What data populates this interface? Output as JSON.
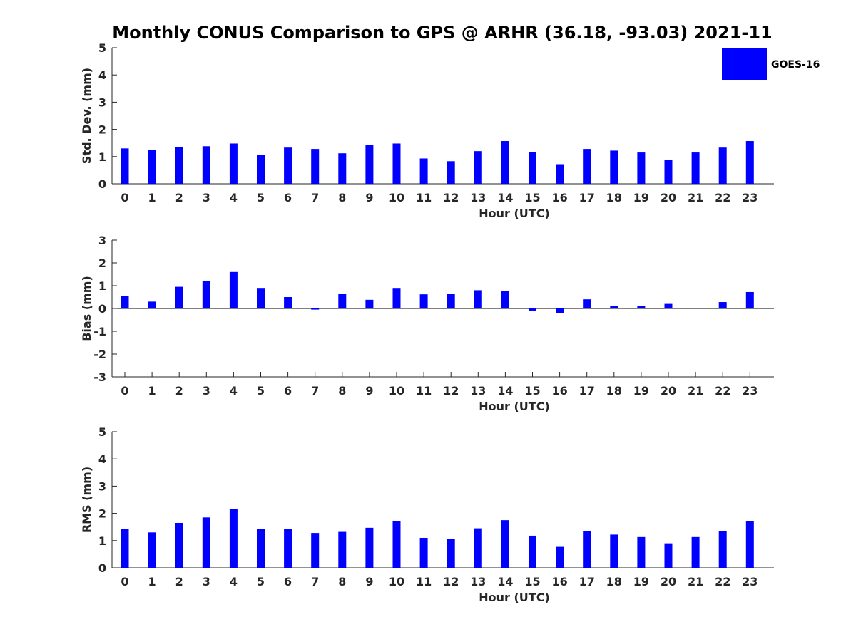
{
  "title": "Monthly CONUS Comparison to GPS @ ARHR (36.18, -93.03) 2021-11",
  "legend": {
    "label": "GOES-16",
    "color": "#0000ff"
  },
  "chart_data": [
    {
      "type": "bar",
      "name": "std_dev",
      "xlabel": "Hour (UTC)",
      "ylabel": "Std. Dev. (mm)",
      "ylim": [
        0,
        5
      ],
      "yticks": [
        0,
        1,
        2,
        3,
        4,
        5
      ],
      "categories": [
        "0",
        "1",
        "2",
        "3",
        "4",
        "5",
        "6",
        "7",
        "8",
        "9",
        "10",
        "11",
        "12",
        "13",
        "14",
        "15",
        "16",
        "17",
        "18",
        "19",
        "20",
        "21",
        "22",
        "23"
      ],
      "series": [
        {
          "name": "GOES-16",
          "values": [
            1.3,
            1.25,
            1.35,
            1.38,
            1.48,
            1.07,
            1.33,
            1.28,
            1.12,
            1.43,
            1.48,
            0.93,
            0.83,
            1.2,
            1.57,
            1.17,
            0.72,
            1.28,
            1.22,
            1.15,
            0.88,
            1.15,
            1.33,
            1.57
          ]
        }
      ],
      "legend": "top-right"
    },
    {
      "type": "bar",
      "name": "bias",
      "xlabel": "Hour (UTC)",
      "ylabel": "Bias (mm)",
      "ylim": [
        -3,
        3
      ],
      "yticks": [
        -3,
        -2,
        -1,
        0,
        1,
        2,
        3
      ],
      "categories": [
        "0",
        "1",
        "2",
        "3",
        "4",
        "5",
        "6",
        "7",
        "8",
        "9",
        "10",
        "11",
        "12",
        "13",
        "14",
        "15",
        "16",
        "17",
        "18",
        "19",
        "20",
        "21",
        "22",
        "23"
      ],
      "series": [
        {
          "name": "GOES-16",
          "values": [
            0.55,
            0.3,
            0.95,
            1.22,
            1.6,
            0.9,
            0.5,
            -0.05,
            0.65,
            0.38,
            0.9,
            0.62,
            0.63,
            0.8,
            0.78,
            -0.1,
            -0.2,
            0.4,
            0.1,
            0.12,
            0.2,
            0.0,
            0.28,
            0.72
          ]
        }
      ]
    },
    {
      "type": "bar",
      "name": "rms",
      "xlabel": "Hour (UTC)",
      "ylabel": "RMS (mm)",
      "ylim": [
        0,
        5
      ],
      "yticks": [
        0,
        1,
        2,
        3,
        4,
        5
      ],
      "categories": [
        "0",
        "1",
        "2",
        "3",
        "4",
        "5",
        "6",
        "7",
        "8",
        "9",
        "10",
        "11",
        "12",
        "13",
        "14",
        "15",
        "16",
        "17",
        "18",
        "19",
        "20",
        "21",
        "22",
        "23"
      ],
      "series": [
        {
          "name": "GOES-16",
          "values": [
            1.42,
            1.3,
            1.65,
            1.85,
            2.17,
            1.42,
            1.42,
            1.28,
            1.32,
            1.47,
            1.72,
            1.1,
            1.05,
            1.45,
            1.75,
            1.18,
            0.77,
            1.35,
            1.22,
            1.13,
            0.9,
            1.13,
            1.35,
            1.72
          ]
        }
      ]
    }
  ]
}
